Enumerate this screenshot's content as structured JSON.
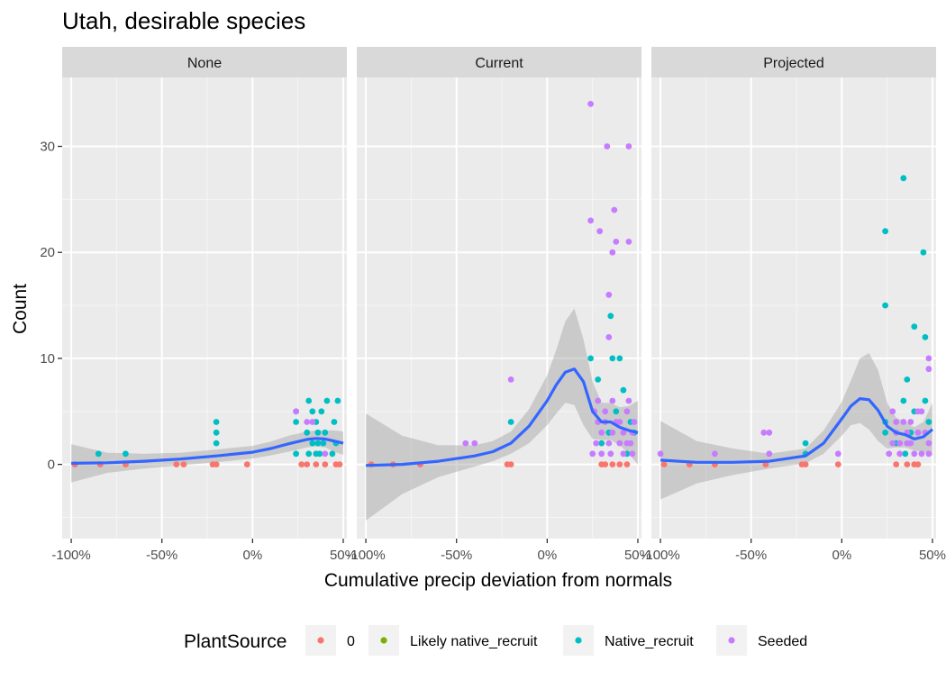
{
  "chart_data": {
    "type": "scatter",
    "title": "Utah, desirable species",
    "xlabel": "Cumulative precip deviation from normals",
    "ylabel": "Count",
    "xlim": [
      -1.05,
      0.52
    ],
    "ylim": [
      -7,
      36.5
    ],
    "x_ticks": [
      -1.0,
      -0.5,
      0.0,
      0.5
    ],
    "x_tick_labels": [
      "-100%",
      "-50%",
      "0%",
      "50%"
    ],
    "y_ticks": [
      0,
      10,
      20,
      30
    ],
    "y_tick_labels": [
      "0",
      "10",
      "20",
      "30"
    ],
    "grid": true,
    "legend": {
      "title": "PlantSource",
      "position": "bottom",
      "entries": [
        {
          "label": "0",
          "color": "#F8766D"
        },
        {
          "label": "Likely native_recruit",
          "color": "#7CAE00"
        },
        {
          "label": "Native_recruit",
          "color": "#00BFC4"
        },
        {
          "label": "Seeded",
          "color": "#C77CFF"
        }
      ]
    },
    "smooth_color": "#3366FF",
    "band_color": "#999999",
    "panels": [
      {
        "label": "None",
        "points": {
          "0": [
            [
              -0.98,
              0
            ],
            [
              -0.84,
              0
            ],
            [
              -0.7,
              0
            ],
            [
              -0.42,
              0
            ],
            [
              -0.38,
              0
            ],
            [
              -0.22,
              0
            ],
            [
              -0.2,
              0
            ],
            [
              -0.03,
              0
            ],
            [
              0.27,
              0
            ],
            [
              0.3,
              0
            ],
            [
              0.35,
              0
            ],
            [
              0.4,
              0
            ],
            [
              0.46,
              0
            ],
            [
              0.48,
              0
            ]
          ],
          "Native_recruit": [
            [
              -0.85,
              1
            ],
            [
              -0.7,
              1
            ],
            [
              -0.2,
              2
            ],
            [
              -0.2,
              3
            ],
            [
              -0.2,
              4
            ],
            [
              0.24,
              1
            ],
            [
              0.24,
              4
            ],
            [
              0.24,
              5
            ],
            [
              0.3,
              3
            ],
            [
              0.31,
              1
            ],
            [
              0.31,
              6
            ],
            [
              0.33,
              2
            ],
            [
              0.33,
              5
            ],
            [
              0.35,
              1
            ],
            [
              0.35,
              4
            ],
            [
              0.36,
              2
            ],
            [
              0.36,
              3
            ],
            [
              0.37,
              1
            ],
            [
              0.38,
              5
            ],
            [
              0.39,
              2
            ],
            [
              0.4,
              3
            ],
            [
              0.41,
              6
            ],
            [
              0.44,
              1
            ],
            [
              0.45,
              4
            ],
            [
              0.46,
              2
            ],
            [
              0.47,
              6
            ]
          ],
          "Seeded": [
            [
              0.24,
              5
            ],
            [
              0.3,
              4
            ],
            [
              0.33,
              4
            ],
            [
              0.4,
              1
            ]
          ]
        },
        "smooth_x": [
          -1.0,
          -0.8,
          -0.6,
          -0.4,
          -0.2,
          0.0,
          0.1,
          0.2,
          0.3,
          0.35,
          0.4,
          0.45,
          0.5
        ],
        "smooth_y": [
          0.1,
          0.15,
          0.3,
          0.5,
          0.8,
          1.15,
          1.5,
          1.95,
          2.35,
          2.45,
          2.4,
          2.2,
          2.0
        ],
        "band_lo": [
          -1.7,
          -0.8,
          -0.4,
          -0.1,
          0.2,
          0.55,
          0.85,
          1.2,
          1.6,
          1.7,
          1.6,
          1.2,
          0.9
        ],
        "band_hi": [
          1.9,
          1.1,
          1.0,
          1.1,
          1.4,
          1.75,
          2.15,
          2.7,
          3.1,
          3.2,
          3.2,
          3.2,
          3.1
        ]
      },
      {
        "label": "Current",
        "points": {
          "0": [
            [
              -0.97,
              0
            ],
            [
              -0.85,
              0
            ],
            [
              -0.7,
              0
            ],
            [
              -0.22,
              0
            ],
            [
              -0.2,
              0
            ],
            [
              0.3,
              0
            ],
            [
              0.32,
              0
            ],
            [
              0.36,
              0
            ],
            [
              0.4,
              0
            ],
            [
              0.44,
              0
            ]
          ],
          "Native_recruit": [
            [
              -0.2,
              4
            ],
            [
              0.24,
              10
            ],
            [
              0.28,
              8
            ],
            [
              0.3,
              2
            ],
            [
              0.34,
              3
            ],
            [
              0.35,
              14
            ],
            [
              0.36,
              10
            ],
            [
              0.38,
              5
            ],
            [
              0.4,
              10
            ],
            [
              0.42,
              7
            ],
            [
              0.44,
              1
            ],
            [
              0.46,
              4
            ],
            [
              0.48,
              3
            ]
          ],
          "Seeded": [
            [
              -0.45,
              2
            ],
            [
              -0.4,
              2
            ],
            [
              -0.2,
              8
            ],
            [
              0.24,
              34
            ],
            [
              0.24,
              23
            ],
            [
              0.29,
              22
            ],
            [
              0.33,
              30
            ],
            [
              0.34,
              16
            ],
            [
              0.34,
              12
            ],
            [
              0.36,
              20
            ],
            [
              0.37,
              24
            ],
            [
              0.38,
              21
            ],
            [
              0.45,
              30
            ],
            [
              0.45,
              21
            ],
            [
              0.26,
              5
            ],
            [
              0.28,
              4
            ],
            [
              0.28,
              6
            ],
            [
              0.3,
              3
            ],
            [
              0.32,
              4
            ],
            [
              0.32,
              5
            ],
            [
              0.34,
              2
            ],
            [
              0.35,
              1
            ],
            [
              0.36,
              3
            ],
            [
              0.38,
              4
            ],
            [
              0.4,
              2
            ],
            [
              0.42,
              1
            ],
            [
              0.44,
              5
            ],
            [
              0.45,
              6
            ],
            [
              0.46,
              2
            ],
            [
              0.47,
              3
            ],
            [
              0.48,
              4
            ],
            [
              0.25,
              1
            ],
            [
              0.27,
              2
            ],
            [
              0.3,
              1
            ],
            [
              0.36,
              6
            ],
            [
              0.4,
              4
            ],
            [
              0.42,
              3
            ],
            [
              0.44,
              2
            ],
            [
              0.47,
              1
            ]
          ]
        },
        "smooth_x": [
          -1.0,
          -0.8,
          -0.6,
          -0.4,
          -0.3,
          -0.2,
          -0.1,
          0.0,
          0.05,
          0.1,
          0.15,
          0.2,
          0.25,
          0.3,
          0.35,
          0.4,
          0.45,
          0.5
        ],
        "smooth_y": [
          -0.1,
          0.0,
          0.3,
          0.8,
          1.2,
          2.0,
          3.6,
          6.0,
          7.5,
          8.7,
          9.0,
          7.8,
          5.0,
          4.0,
          4.0,
          3.5,
          3.2,
          3.0
        ],
        "band_lo": [
          -5.3,
          -2.8,
          -1.2,
          -0.2,
          0.3,
          1.0,
          2.0,
          3.7,
          4.8,
          5.8,
          5.6,
          3.7,
          2.4,
          2.3,
          2.3,
          1.8,
          1.0,
          0.0
        ],
        "band_hi": [
          4.8,
          2.7,
          1.8,
          1.8,
          2.2,
          3.1,
          5.2,
          8.4,
          10.8,
          13.5,
          14.7,
          11.8,
          7.8,
          5.8,
          5.8,
          5.4,
          5.5,
          6.0
        ]
      },
      {
        "label": "Projected",
        "points": {
          "0": [
            [
              -0.98,
              0
            ],
            [
              -0.84,
              0
            ],
            [
              -0.7,
              0
            ],
            [
              -0.42,
              0
            ],
            [
              -0.22,
              0
            ],
            [
              -0.2,
              0
            ],
            [
              -0.02,
              0
            ],
            [
              0.3,
              0
            ],
            [
              0.36,
              0
            ],
            [
              0.4,
              0
            ],
            [
              0.42,
              0
            ]
          ],
          "Native_recruit": [
            [
              -0.2,
              1
            ],
            [
              -0.2,
              2
            ],
            [
              0.24,
              22
            ],
            [
              0.24,
              15
            ],
            [
              0.24,
              4
            ],
            [
              0.24,
              3
            ],
            [
              0.34,
              27
            ],
            [
              0.36,
              8
            ],
            [
              0.34,
              6
            ],
            [
              0.38,
              3
            ],
            [
              0.4,
              13
            ],
            [
              0.4,
              5
            ],
            [
              0.45,
              20
            ],
            [
              0.46,
              12
            ],
            [
              0.46,
              6
            ],
            [
              0.48,
              4
            ],
            [
              0.3,
              2
            ],
            [
              0.35,
              1
            ]
          ],
          "Seeded": [
            [
              -1.0,
              1
            ],
            [
              -0.7,
              1
            ],
            [
              -0.43,
              3
            ],
            [
              -0.4,
              3
            ],
            [
              -0.4,
              1
            ],
            [
              -0.02,
              1
            ],
            [
              0.28,
              5
            ],
            [
              0.3,
              4
            ],
            [
              0.3,
              3
            ],
            [
              0.32,
              2
            ],
            [
              0.34,
              4
            ],
            [
              0.36,
              3
            ],
            [
              0.38,
              2
            ],
            [
              0.4,
              1
            ],
            [
              0.42,
              5
            ],
            [
              0.44,
              5
            ],
            [
              0.46,
              3
            ],
            [
              0.48,
              9
            ],
            [
              0.48,
              10
            ],
            [
              0.48,
              2
            ],
            [
              0.48,
              1
            ],
            [
              0.26,
              1
            ],
            [
              0.28,
              2
            ],
            [
              0.32,
              1
            ],
            [
              0.36,
              2
            ],
            [
              0.38,
              4
            ],
            [
              0.42,
              3
            ],
            [
              0.44,
              1
            ]
          ]
        },
        "smooth_x": [
          -1.0,
          -0.8,
          -0.6,
          -0.4,
          -0.2,
          -0.1,
          0.0,
          0.05,
          0.1,
          0.15,
          0.2,
          0.25,
          0.3,
          0.35,
          0.4,
          0.45,
          0.5
        ],
        "smooth_y": [
          0.4,
          0.2,
          0.2,
          0.3,
          0.8,
          2.0,
          4.3,
          5.5,
          6.2,
          6.1,
          5.1,
          3.6,
          3.0,
          2.8,
          2.4,
          2.6,
          3.3
        ],
        "band_lo": [
          -3.3,
          -1.8,
          -1.0,
          -0.4,
          0.1,
          1.0,
          2.7,
          3.7,
          3.9,
          3.3,
          2.2,
          1.5,
          1.6,
          1.6,
          1.3,
          1.2,
          0.8
        ],
        "band_hi": [
          4.1,
          2.2,
          1.5,
          1.0,
          1.5,
          3.2,
          5.9,
          7.9,
          10.0,
          10.5,
          8.9,
          5.8,
          4.4,
          4.0,
          3.5,
          4.0,
          5.8
        ]
      }
    ]
  }
}
